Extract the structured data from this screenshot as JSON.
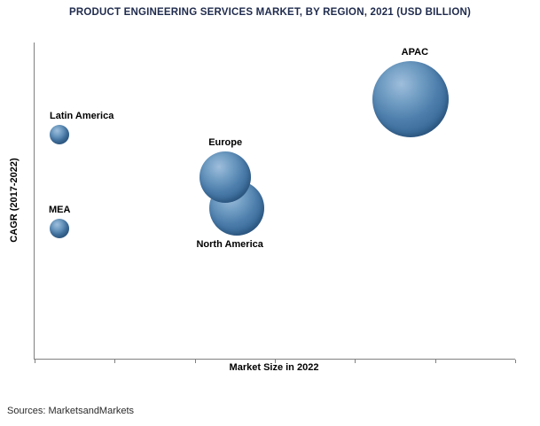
{
  "header": {
    "title": "PRODUCT ENGINEERING SERVICES MARKET, BY REGION, 2021 (USD BILLION)"
  },
  "footer": {
    "source": "Sources: MarketsandMarkets"
  },
  "chart_data": {
    "type": "scatter",
    "subtype": "bubble",
    "title": "PRODUCT ENGINEERING SERVICES MARKET, BY REGION, 2021 (USD BILLION)",
    "xlabel": "Market Size in 2022",
    "ylabel": "CAGR (2017-2022)",
    "legend": "none",
    "grid": false,
    "axes_numeric_labels_visible": false,
    "bubble_color": "#4c7dab",
    "x_ticks_pct": [
      0,
      16.67,
      33.33,
      50,
      66.67,
      83.33,
      100
    ],
    "points": [
      {
        "name": "Latin America",
        "x_pct": 5.2,
        "y_pct": 29.1,
        "r": 11,
        "label_position": "above",
        "label_dx": 25
      },
      {
        "name": "MEA",
        "x_pct": 5.2,
        "y_pct": 58.8,
        "r": 11,
        "label_position": "above",
        "label_dx": 0
      },
      {
        "name": "North America",
        "x_pct": 42.1,
        "y_pct": 52.4,
        "r": 31,
        "label_position": "below",
        "label_dx": -8
      },
      {
        "name": "Europe",
        "x_pct": 39.7,
        "y_pct": 42.6,
        "r": 29,
        "label_position": "above",
        "label_dx": 0
      },
      {
        "name": "APAC",
        "x_pct": 78.2,
        "y_pct": 18.0,
        "r": 43,
        "label_position": "above",
        "label_dx": 5
      }
    ]
  }
}
